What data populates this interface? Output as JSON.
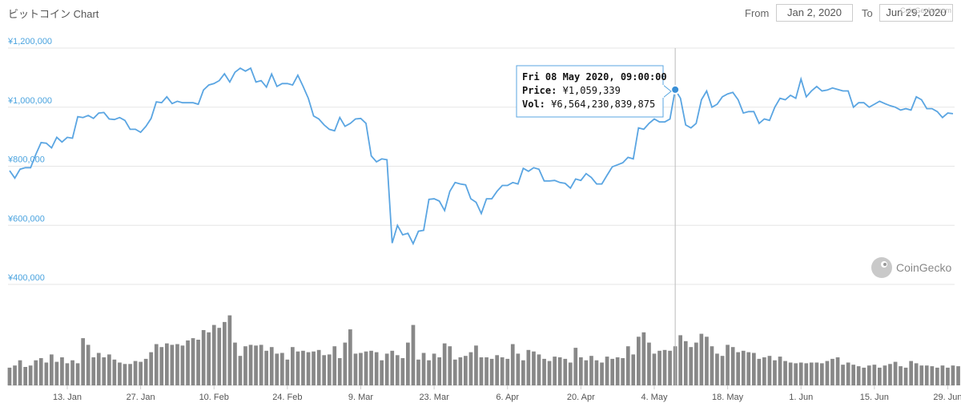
{
  "header": {
    "title": "ビットコイン Chart",
    "from_label": "From",
    "from_value": "Jan 2, 2020",
    "to_label": "To",
    "to_value": "Jun 29, 2020",
    "overlay_text": "CoinGecko.com"
  },
  "watermark": {
    "text": "CoinGecko",
    "icon": "gecko-logo-icon"
  },
  "colors": {
    "line": "#5aa5e2",
    "bar": "#888888",
    "grid": "#e6e6e6",
    "accent": "#4aa3df"
  },
  "tooltip": {
    "date": "Fri 08 May 2020, 09:00:00",
    "price_label": "Price:",
    "price_value": "¥1,059,339",
    "vol_label": "Vol:",
    "vol_value": "¥6,564,230,839,875",
    "index": 127
  },
  "chart_data": {
    "type": "line",
    "y_tick_labels": [
      "¥1,200,000",
      "¥1,000,000",
      "¥800,000",
      "¥600,000",
      "¥400,000"
    ],
    "y_ticks": [
      1200000,
      1000000,
      800000,
      600000,
      400000
    ],
    "ylim": [
      400000,
      1200000
    ],
    "x_tick_labels": [
      "13. Jan",
      "27. Jan",
      "10. Feb",
      "24. Feb",
      "9. Mar",
      "23. Mar",
      "6. Apr",
      "20. Apr",
      "4. May",
      "18. May",
      "1. Jun",
      "15. Jun",
      "29. Jun"
    ],
    "x_tick_index": [
      11,
      25,
      39,
      53,
      67,
      81,
      95,
      109,
      123,
      137,
      151,
      165,
      179
    ],
    "series": [
      {
        "values": [
          785000,
          760000,
          790000,
          795000,
          795000,
          840000,
          880000,
          878000,
          862000,
          898000,
          882000,
          898000,
          895000,
          968000,
          965000,
          972000,
          962000,
          980000,
          982000,
          960000,
          958000,
          965000,
          955000,
          925000,
          925000,
          915000,
          935000,
          962000,
          1018000,
          1015000,
          1035000,
          1012000,
          1020000,
          1015000,
          1015000,
          1015000,
          1010000,
          1058000,
          1075000,
          1080000,
          1090000,
          1113000,
          1085000,
          1118000,
          1132000,
          1122000,
          1132000,
          1085000,
          1090000,
          1068000,
          1112000,
          1070000,
          1080000,
          1080000,
          1075000,
          1108000,
          1070000,
          1030000,
          970000,
          960000,
          940000,
          925000,
          920000,
          965000,
          935000,
          945000,
          960000,
          962000,
          945000,
          835000,
          815000,
          825000,
          822000,
          540000,
          600000,
          568000,
          573000,
          538000,
          580000,
          583000,
          688000,
          690000,
          682000,
          650000,
          715000,
          745000,
          740000,
          737000,
          690000,
          678000,
          640000,
          690000,
          690000,
          715000,
          735000,
          735000,
          745000,
          740000,
          793000,
          783000,
          795000,
          790000,
          750000,
          750000,
          752000,
          745000,
          742000,
          726000,
          757000,
          752000,
          775000,
          762000,
          740000,
          740000,
          770000,
          798000,
          805000,
          812000,
          830000,
          825000,
          930000,
          925000,
          945000,
          960000,
          950000,
          950000,
          960000,
          1059339,
          1030000,
          940000,
          930000,
          945000,
          1025000,
          1055000,
          1000000,
          1010000,
          1035000,
          1045000,
          1050000,
          1025000,
          980000,
          985000,
          985000,
          945000,
          960000,
          955000,
          1000000,
          1030000,
          1025000,
          1040000,
          1030000,
          1095000,
          1035000,
          1055000,
          1070000,
          1055000,
          1058000,
          1065000,
          1060000,
          1055000,
          1055000,
          1000000,
          1015000,
          1015000,
          1000000,
          1010000,
          1020000,
          1012000,
          1005000,
          1000000,
          990000,
          995000,
          990000,
          1035000,
          1025000,
          995000,
          995000,
          985000,
          965000,
          980000,
          978000
        ]
      }
    ],
    "volume_relative": [
      0.24,
      0.27,
      0.34,
      0.25,
      0.27,
      0.34,
      0.37,
      0.31,
      0.42,
      0.32,
      0.38,
      0.3,
      0.34,
      0.3,
      0.64,
      0.55,
      0.38,
      0.44,
      0.38,
      0.42,
      0.35,
      0.31,
      0.29,
      0.29,
      0.33,
      0.32,
      0.36,
      0.45,
      0.56,
      0.52,
      0.57,
      0.55,
      0.56,
      0.54,
      0.61,
      0.64,
      0.62,
      0.75,
      0.72,
      0.82,
      0.78,
      0.86,
      0.95,
      0.58,
      0.4,
      0.53,
      0.55,
      0.54,
      0.55,
      0.47,
      0.52,
      0.43,
      0.44,
      0.35,
      0.52,
      0.46,
      0.47,
      0.45,
      0.46,
      0.48,
      0.41,
      0.42,
      0.53,
      0.37,
      0.58,
      0.76,
      0.43,
      0.44,
      0.46,
      0.47,
      0.45,
      0.34,
      0.43,
      0.47,
      0.41,
      0.37,
      0.58,
      0.82,
      0.35,
      0.44,
      0.34,
      0.43,
      0.38,
      0.57,
      0.53,
      0.35,
      0.38,
      0.4,
      0.45,
      0.54,
      0.38,
      0.38,
      0.36,
      0.41,
      0.38,
      0.36,
      0.56,
      0.43,
      0.34,
      0.48,
      0.46,
      0.42,
      0.36,
      0.33,
      0.39,
      0.38,
      0.36,
      0.31,
      0.51,
      0.38,
      0.34,
      0.4,
      0.34,
      0.31,
      0.39,
      0.36,
      0.38,
      0.37,
      0.53,
      0.42,
      0.66,
      0.72,
      0.58,
      0.43,
      0.47,
      0.48,
      0.47,
      0.53,
      0.68,
      0.6,
      0.52,
      0.58,
      0.7,
      0.66,
      0.53,
      0.43,
      0.4,
      0.55,
      0.52,
      0.45,
      0.47,
      0.45,
      0.44,
      0.36,
      0.38,
      0.4,
      0.34,
      0.39,
      0.33,
      0.31,
      0.3,
      0.31,
      0.3,
      0.31,
      0.31,
      0.3,
      0.33,
      0.36,
      0.38,
      0.28,
      0.31,
      0.28,
      0.26,
      0.24,
      0.27,
      0.28,
      0.24,
      0.27,
      0.29,
      0.32,
      0.26,
      0.24,
      0.33,
      0.3,
      0.27,
      0.27,
      0.26,
      0.24,
      0.27,
      0.24,
      0.27,
      0.26,
      0.23,
      0.28,
      0.27,
      0.26,
      0.24,
      0.23,
      0.23
    ]
  }
}
